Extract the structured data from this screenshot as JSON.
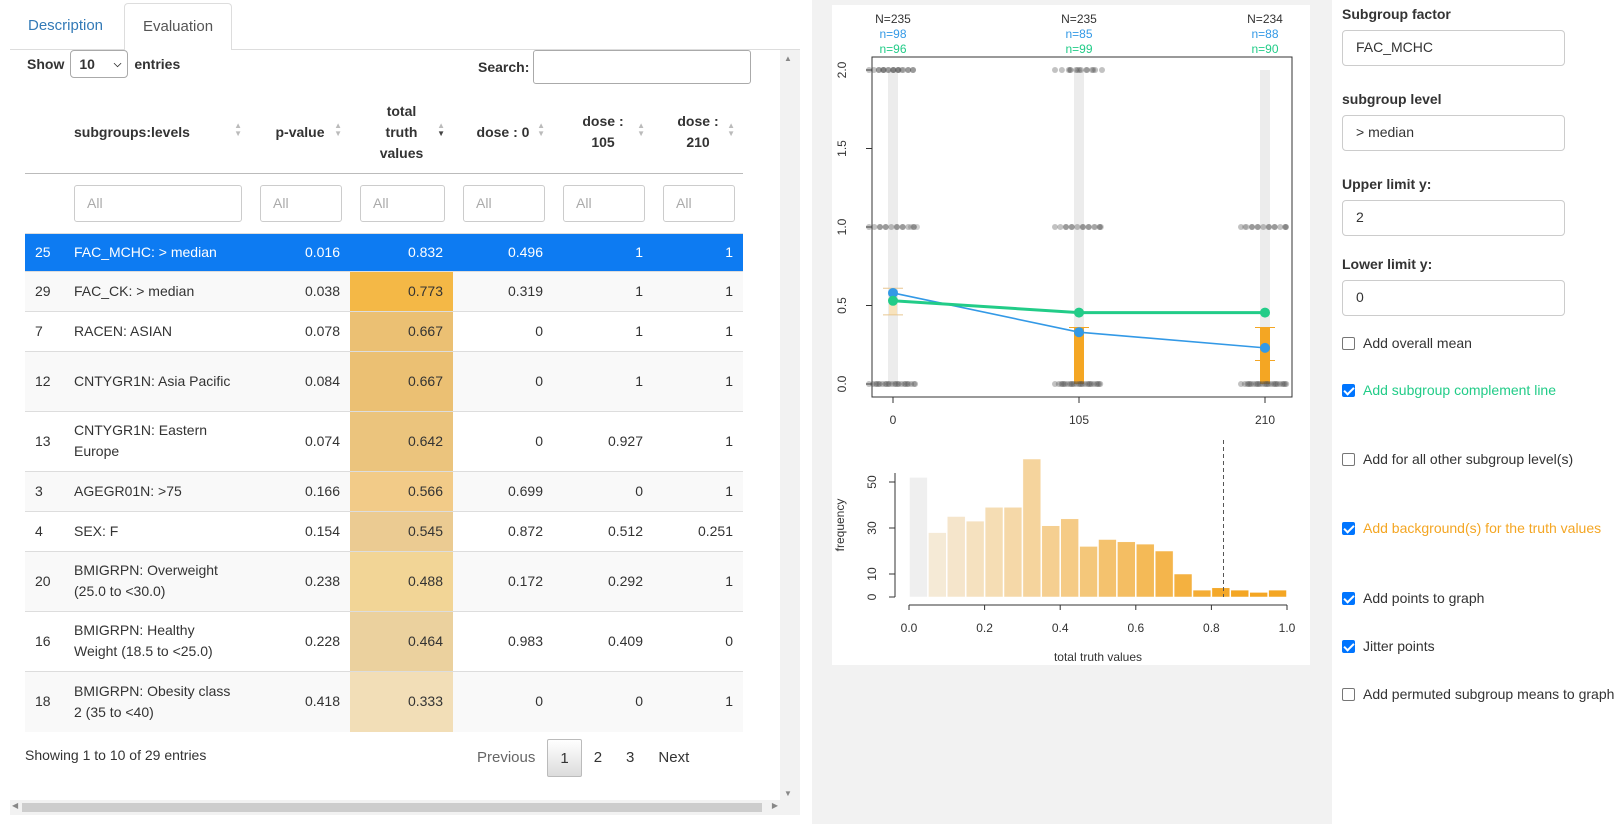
{
  "tabs": [
    {
      "label": "Description"
    },
    {
      "label": "Evaluation"
    }
  ],
  "table_controls": {
    "show_label": "Show",
    "entries_value": "10",
    "entries_label": "entries",
    "search_label": "Search:",
    "search_value": ""
  },
  "columns": [
    {
      "label": "subgroups:levels"
    },
    {
      "label": "p-value"
    },
    {
      "label": "total truth values"
    },
    {
      "label": "dose : 0"
    },
    {
      "label": "dose : 105"
    },
    {
      "label": "dose : 210"
    }
  ],
  "filters": [
    "All",
    "All",
    "All",
    "All",
    "All",
    "All"
  ],
  "rows": [
    {
      "id": "25",
      "subgroup": "FAC_MCHC: > median",
      "p": "0.016",
      "total": "0.832",
      "d0": "0.496",
      "d105": "1",
      "d210": "1"
    },
    {
      "id": "29",
      "subgroup": "FAC_CK: > median",
      "p": "0.038",
      "total": "0.773",
      "d0": "0.319",
      "d105": "1",
      "d210": "1"
    },
    {
      "id": "7",
      "subgroup": "RACEN: ASIAN",
      "p": "0.078",
      "total": "0.667",
      "d0": "0",
      "d105": "1",
      "d210": "1"
    },
    {
      "id": "12",
      "subgroup": "CNTYGR1N: Asia Pacific",
      "p": "0.084",
      "total": "0.667",
      "d0": "0",
      "d105": "1",
      "d210": "1"
    },
    {
      "id": "13",
      "subgroup": "CNTYGR1N: Eastern Europe",
      "p": "0.074",
      "total": "0.642",
      "d0": "0",
      "d105": "0.927",
      "d210": "1"
    },
    {
      "id": "3",
      "subgroup": "AGEGR01N: >75",
      "p": "0.166",
      "total": "0.566",
      "d0": "0.699",
      "d105": "0",
      "d210": "1"
    },
    {
      "id": "4",
      "subgroup": "SEX: F",
      "p": "0.154",
      "total": "0.545",
      "d0": "0.872",
      "d105": "0.512",
      "d210": "0.251"
    },
    {
      "id": "20",
      "subgroup": "BMIGRPN: Overweight (25.0 to <30.0)",
      "p": "0.238",
      "total": "0.488",
      "d0": "0.172",
      "d105": "0.292",
      "d210": "1"
    },
    {
      "id": "16",
      "subgroup": "BMIGRPN: Healthy Weight (18.5 to <25.0)",
      "p": "0.228",
      "total": "0.464",
      "d0": "0.983",
      "d105": "0.409",
      "d210": "0"
    },
    {
      "id": "18",
      "subgroup": "BMIGRPN: Obesity class 2 (35 to <40)",
      "p": "0.418",
      "total": "0.333",
      "d0": "0",
      "d105": "0",
      "d210": "1"
    }
  ],
  "footer": {
    "info": "Showing 1 to 10 of 29 entries",
    "previous": "Previous",
    "next": "Next",
    "pages": [
      "1",
      "2",
      "3"
    ]
  },
  "colors": {
    "selected_row": "#0d7bf2",
    "subgroup_line": "#3399e6",
    "complement_line": "#22cc88",
    "truth_bar": "#f4a623"
  },
  "chart_data": [
    {
      "type": "line",
      "x": [
        0,
        105,
        210
      ],
      "x_tick_labels": [
        "0",
        "105",
        "210"
      ],
      "y_ticks": [
        0.0,
        0.5,
        1.0,
        1.5,
        2.0
      ],
      "ylim": [
        0,
        2
      ],
      "header_N": [
        "N=235",
        "N=235",
        "N=234"
      ],
      "header_n_subgroup": [
        "n=98",
        "n=85",
        "n=88"
      ],
      "header_n_complement": [
        "n=96",
        "n=99",
        "n=90"
      ],
      "series": [
        {
          "values": [
            0.58,
            0.33,
            0.23
          ],
          "color": "#3399e6"
        },
        {
          "values": [
            0.53,
            0.455,
            0.455
          ],
          "color": "#22cc88"
        }
      ],
      "truth_values": [
        0.496,
        1,
        1
      ]
    },
    {
      "type": "bar",
      "xlabel": "total truth values",
      "ylabel": "frequency",
      "x_ticks": [
        "0.0",
        "0.2",
        "0.4",
        "0.6",
        "0.8",
        "1.0"
      ],
      "y_ticks": [
        "0",
        "10",
        "30",
        "50"
      ],
      "bin_width": 0.05,
      "xlim": [
        0,
        1
      ],
      "values": [
        52,
        28,
        35,
        33,
        39,
        39,
        60,
        31,
        34,
        22,
        25,
        24,
        23,
        20,
        10,
        3,
        4,
        3,
        2,
        3
      ],
      "vline_x": 0.832
    }
  ],
  "controls": {
    "subgroup_factor_label": "Subgroup factor",
    "subgroup_factor_value": "FAC_MCHC",
    "subgroup_level_label": "subgroup level",
    "subgroup_level_value": "> median",
    "upper_label": "Upper limit y:",
    "upper_value": "2",
    "lower_label": "Lower limit y:",
    "lower_value": "0",
    "checkboxes": [
      {
        "label": "Add overall mean",
        "checked": false,
        "color": "#333333"
      },
      {
        "label": "Add subgroup complement line",
        "checked": true,
        "color": "#22cc88"
      },
      {
        "label": "Add for all other subgroup level(s)",
        "checked": false,
        "color": "#333333"
      },
      {
        "label": "Add background(s) for the truth values",
        "checked": true,
        "color": "#f4a623"
      },
      {
        "label": "Add points to graph",
        "checked": true,
        "color": "#333333"
      },
      {
        "label": "Jitter points",
        "checked": true,
        "color": "#333333"
      },
      {
        "label": "Add permuted subgroup means to graph",
        "checked": false,
        "color": "#333333"
      }
    ]
  }
}
